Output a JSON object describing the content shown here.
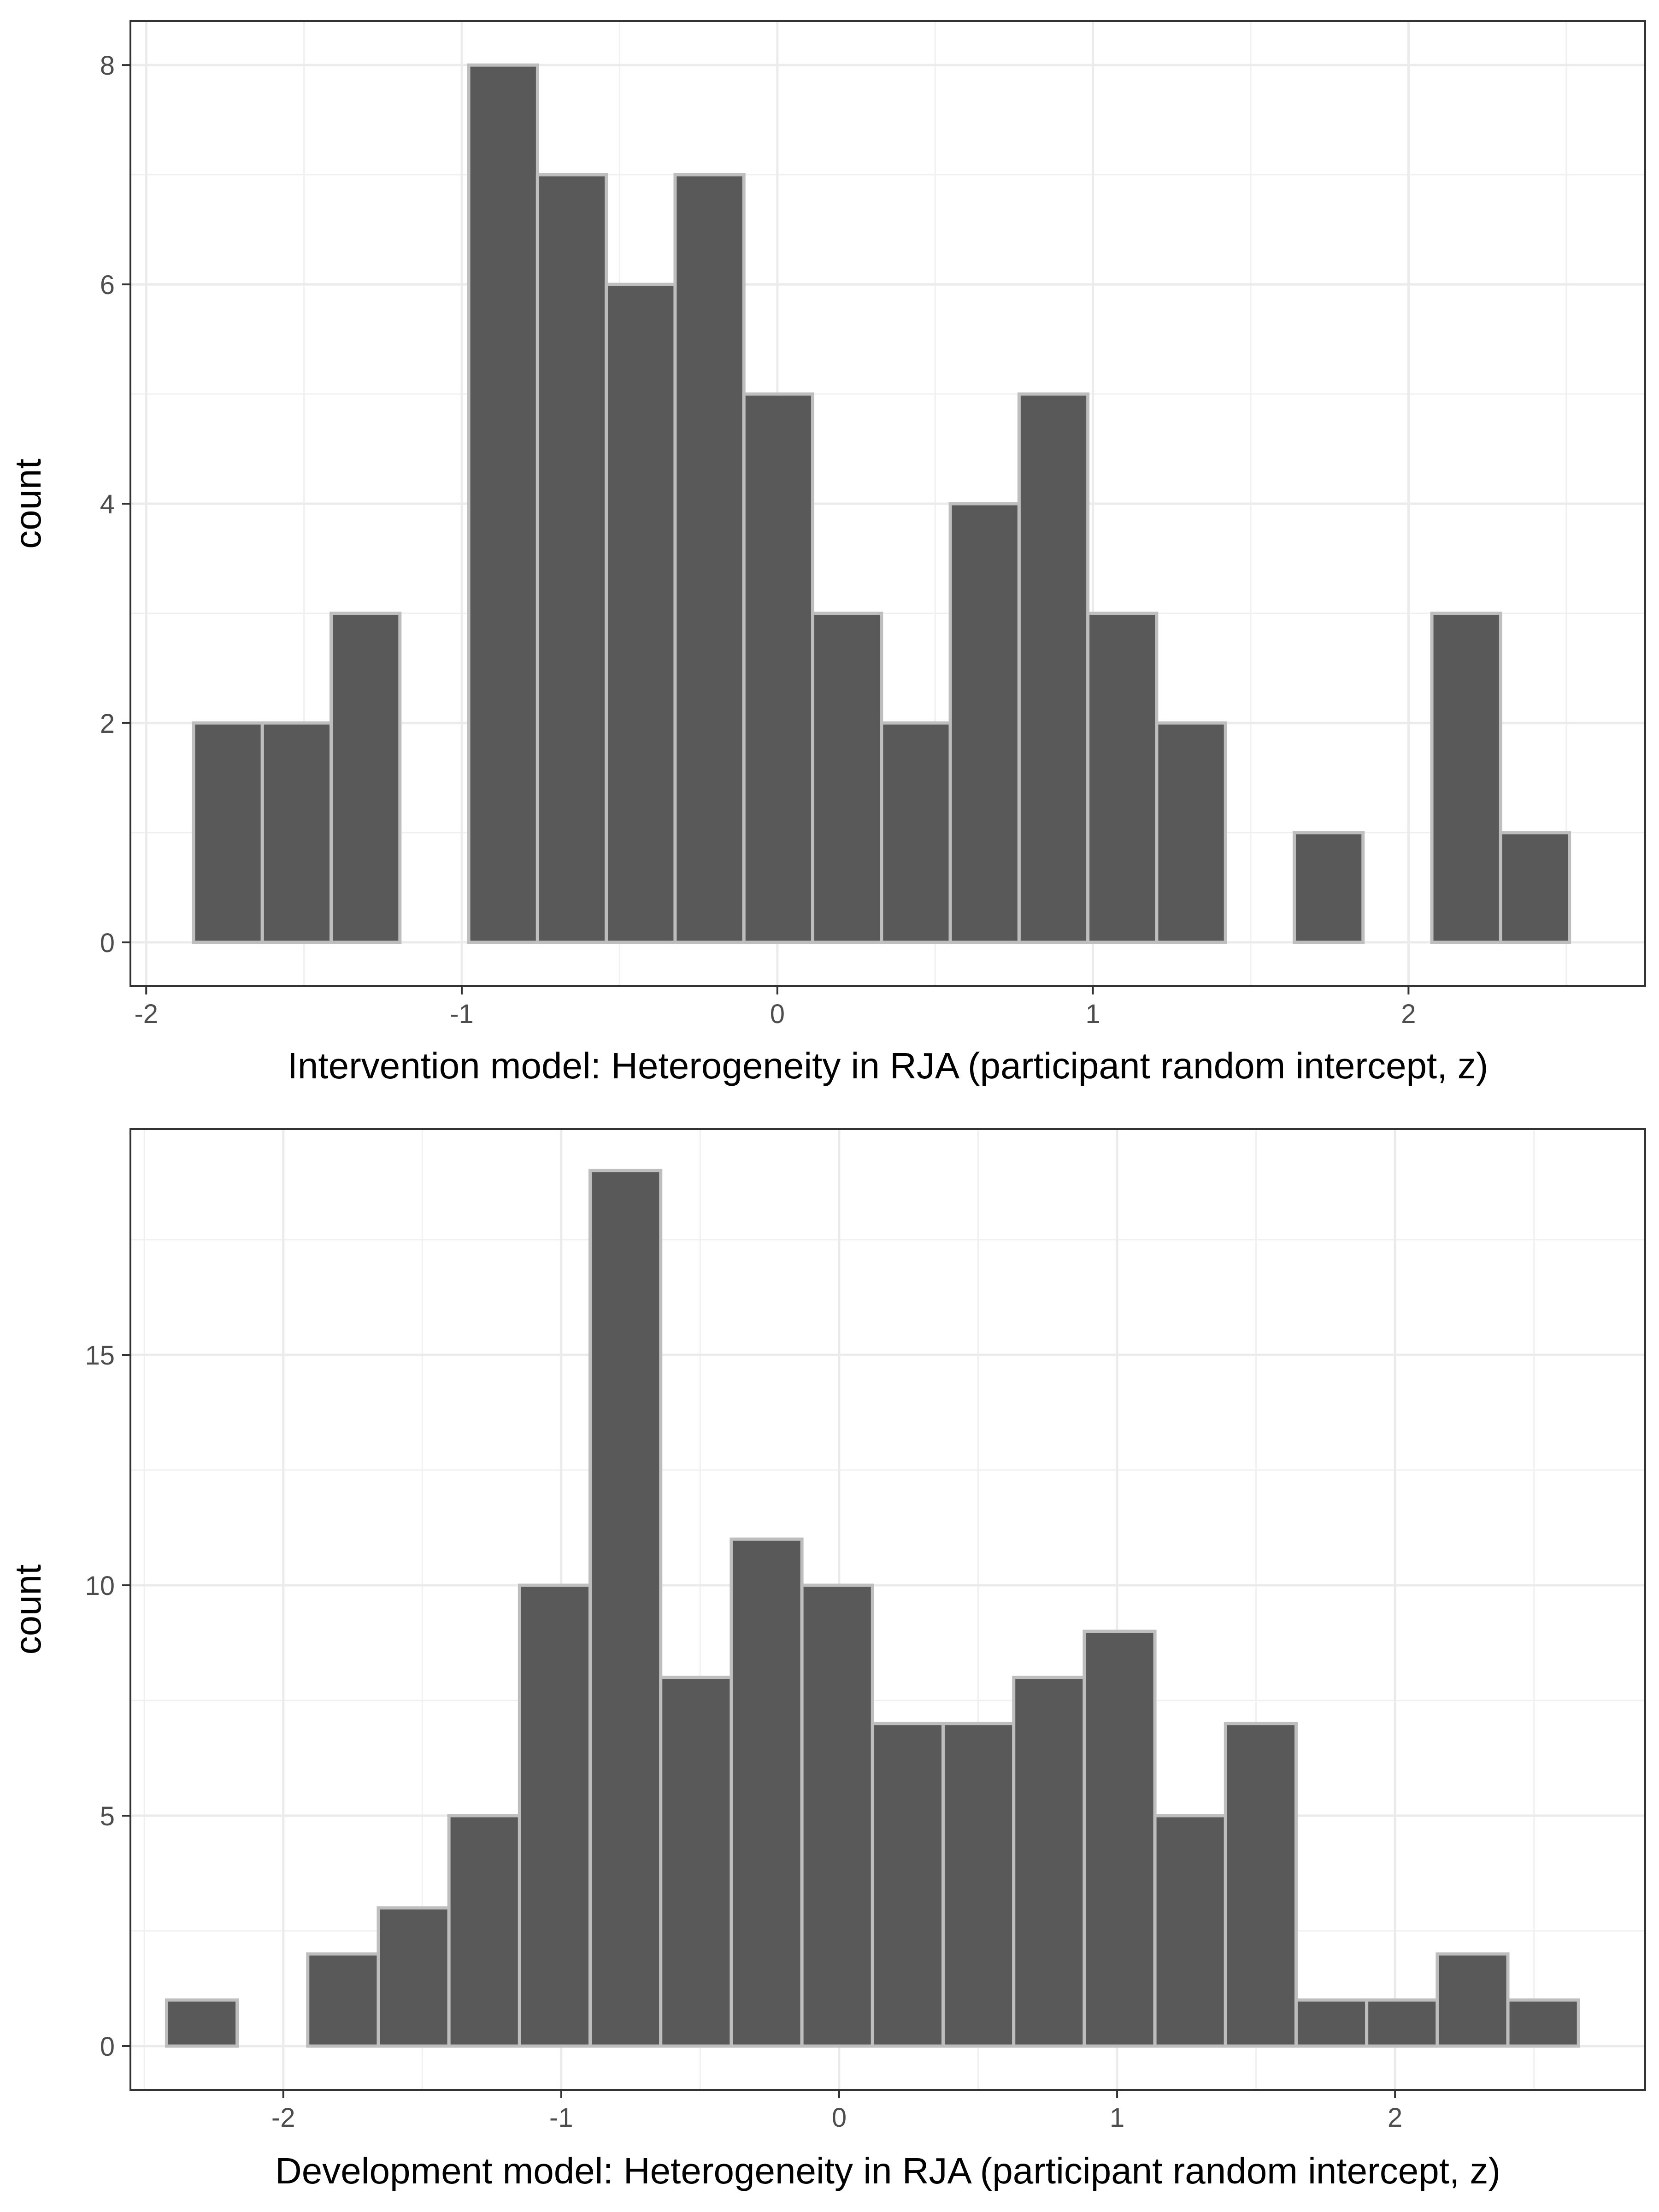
{
  "chart_data": [
    {
      "type": "bar",
      "subtype": "histogram",
      "xlabel": "Intervention model: Heterogeneity in RJA (participant random intercept, z)",
      "ylabel": "count",
      "xlim": [
        -2.05,
        2.75
      ],
      "ylim": [
        -0.4,
        8.4
      ],
      "xticks": [
        "-2",
        "-1",
        "0",
        "1",
        "2"
      ],
      "yticks": [
        "0",
        "2",
        "4",
        "6",
        "8"
      ],
      "grid": true,
      "bin_width": 0.2186,
      "bins": [
        {
          "x0": -1.85,
          "x1": -1.632,
          "count": 2
        },
        {
          "x0": -1.632,
          "x1": -1.414,
          "count": 2
        },
        {
          "x0": -1.414,
          "x1": -1.196,
          "count": 3
        },
        {
          "x0": -1.196,
          "x1": -0.978,
          "count": 0
        },
        {
          "x0": -0.978,
          "x1": -0.76,
          "count": 8
        },
        {
          "x0": -0.76,
          "x1": -0.542,
          "count": 7
        },
        {
          "x0": -0.542,
          "x1": -0.324,
          "count": 6
        },
        {
          "x0": -0.324,
          "x1": -0.106,
          "count": 7
        },
        {
          "x0": -0.106,
          "x1": 0.112,
          "count": 5
        },
        {
          "x0": 0.112,
          "x1": 0.33,
          "count": 3
        },
        {
          "x0": 0.33,
          "x1": 0.548,
          "count": 2
        },
        {
          "x0": 0.548,
          "x1": 0.766,
          "count": 4
        },
        {
          "x0": 0.766,
          "x1": 0.984,
          "count": 5
        },
        {
          "x0": 0.984,
          "x1": 1.202,
          "count": 3
        },
        {
          "x0": 1.202,
          "x1": 1.42,
          "count": 2
        },
        {
          "x0": 1.42,
          "x1": 1.638,
          "count": 0
        },
        {
          "x0": 1.638,
          "x1": 1.856,
          "count": 1
        },
        {
          "x0": 1.856,
          "x1": 2.074,
          "count": 0
        },
        {
          "x0": 2.074,
          "x1": 2.292,
          "count": 3
        },
        {
          "x0": 2.292,
          "x1": 2.51,
          "count": 1
        }
      ],
      "fill_color": "#595959",
      "edge_color": "#bebebe"
    },
    {
      "type": "bar",
      "subtype": "histogram",
      "xlabel": "Development model: Heterogeneity in RJA (participant random intercept, z)",
      "ylabel": "count",
      "xlim": [
        -2.55,
        2.9
      ],
      "ylim": [
        -0.95,
        19.9
      ],
      "xticks": [
        "-2",
        "-1",
        "0",
        "1",
        "2"
      ],
      "yticks": [
        "0",
        "5",
        "10",
        "15"
      ],
      "grid": true,
      "bin_width": 0.2538,
      "bins": [
        {
          "x0": -2.42,
          "x1": -2.166,
          "count": 1
        },
        {
          "x0": -2.166,
          "x1": -1.912,
          "count": 0
        },
        {
          "x0": -1.912,
          "x1": -1.658,
          "count": 2
        },
        {
          "x0": -1.658,
          "x1": -1.404,
          "count": 3
        },
        {
          "x0": -1.404,
          "x1": -1.15,
          "count": 5
        },
        {
          "x0": -1.15,
          "x1": -0.896,
          "count": 10
        },
        {
          "x0": -0.896,
          "x1": -0.642,
          "count": 19
        },
        {
          "x0": -0.642,
          "x1": -0.388,
          "count": 8
        },
        {
          "x0": -0.388,
          "x1": -0.134,
          "count": 11
        },
        {
          "x0": -0.134,
          "x1": 0.12,
          "count": 10
        },
        {
          "x0": 0.12,
          "x1": 0.374,
          "count": 7
        },
        {
          "x0": 0.374,
          "x1": 0.628,
          "count": 7
        },
        {
          "x0": 0.628,
          "x1": 0.882,
          "count": 8
        },
        {
          "x0": 0.882,
          "x1": 1.136,
          "count": 9
        },
        {
          "x0": 1.136,
          "x1": 1.39,
          "count": 5
        },
        {
          "x0": 1.39,
          "x1": 1.644,
          "count": 7
        },
        {
          "x0": 1.644,
          "x1": 1.898,
          "count": 1
        },
        {
          "x0": 1.898,
          "x1": 2.152,
          "count": 1
        },
        {
          "x0": 2.152,
          "x1": 2.406,
          "count": 2
        },
        {
          "x0": 2.406,
          "x1": 2.66,
          "count": 1
        }
      ],
      "fill_color": "#595959",
      "edge_color": "#bebebe"
    }
  ]
}
